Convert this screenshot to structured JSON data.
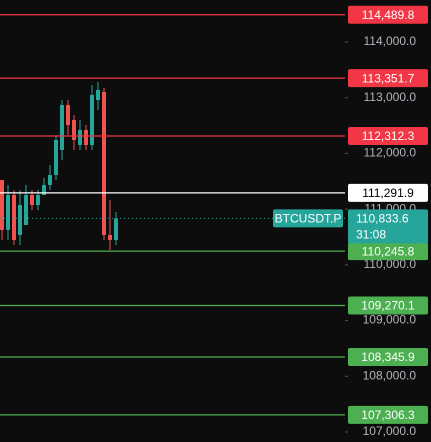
{
  "chart_data": {
    "type": "candlestick",
    "symbol": "BTCUSDT.P",
    "countdown": "31:08",
    "last_price": {
      "value": 110833.6,
      "label": "110,833.6"
    },
    "up_color": "#26a69a",
    "down_color": "#ef5350",
    "x": [
      null,
      null,
      null,
      null,
      null,
      null,
      null,
      null,
      null,
      null,
      null,
      null,
      null,
      null,
      null,
      null,
      null,
      null,
      null,
      null
    ],
    "open": [
      111523,
      110626,
      111254,
      110536,
      110715,
      111254,
      111074,
      111254,
      111433,
      111613,
      112062,
      112869,
      112600,
      112151,
      112420,
      112151,
      112959,
      113103,
      110536,
      110446
    ],
    "high": [
      111523,
      111433,
      111344,
      111344,
      111433,
      111344,
      111344,
      111559,
      111792,
      112331,
      112959,
      112959,
      112690,
      112600,
      112510,
      113228,
      113282,
      113174,
      111164,
      110949
    ],
    "low": [
      110446,
      110446,
      110356,
      110356,
      110715,
      110985,
      110985,
      111254,
      111344,
      111523,
      111882,
      112331,
      112062,
      112062,
      112062,
      112062,
      112780,
      110446,
      110267,
      110356
    ],
    "close": [
      110626,
      111254,
      110446,
      111074,
      111254,
      111074,
      111254,
      111433,
      111613,
      112241,
      112869,
      112510,
      112241,
      112420,
      112151,
      113049,
      113139,
      110536,
      110446,
      110833.6
    ],
    "ylim": [
      106820,
      114754
    ],
    "yticks": [
      {
        "value": 114000,
        "label": "114,000.0"
      },
      {
        "value": 113000,
        "label": "113,000.0"
      },
      {
        "value": 112000,
        "label": "112,000.0"
      },
      {
        "value": 111000,
        "label": "111,000.0"
      },
      {
        "value": 110000,
        "label": "110,000.0"
      },
      {
        "value": 109000,
        "label": "109,000.0"
      },
      {
        "value": 108000,
        "label": "108,000.0"
      },
      {
        "value": 107000,
        "label": "107,000.0"
      }
    ],
    "levels": [
      {
        "value": 114489.8,
        "label": "114,489.8",
        "color": "#f23645"
      },
      {
        "value": 113351.7,
        "label": "113,351.7",
        "color": "#f23645"
      },
      {
        "value": 112312.3,
        "label": "112,312.3",
        "color": "#f23645"
      },
      {
        "value": 111291.9,
        "label": "111,291.9",
        "color": "#ffffff"
      },
      {
        "value": 110245.8,
        "label": "110,245.8",
        "color": "#4caf50"
      },
      {
        "value": 109270.1,
        "label": "109,270.1",
        "color": "#4caf50"
      },
      {
        "value": 108345.9,
        "label": "108,345.9",
        "color": "#4caf50"
      },
      {
        "value": 107306.3,
        "label": "107,306.3",
        "color": "#4caf50"
      }
    ]
  }
}
